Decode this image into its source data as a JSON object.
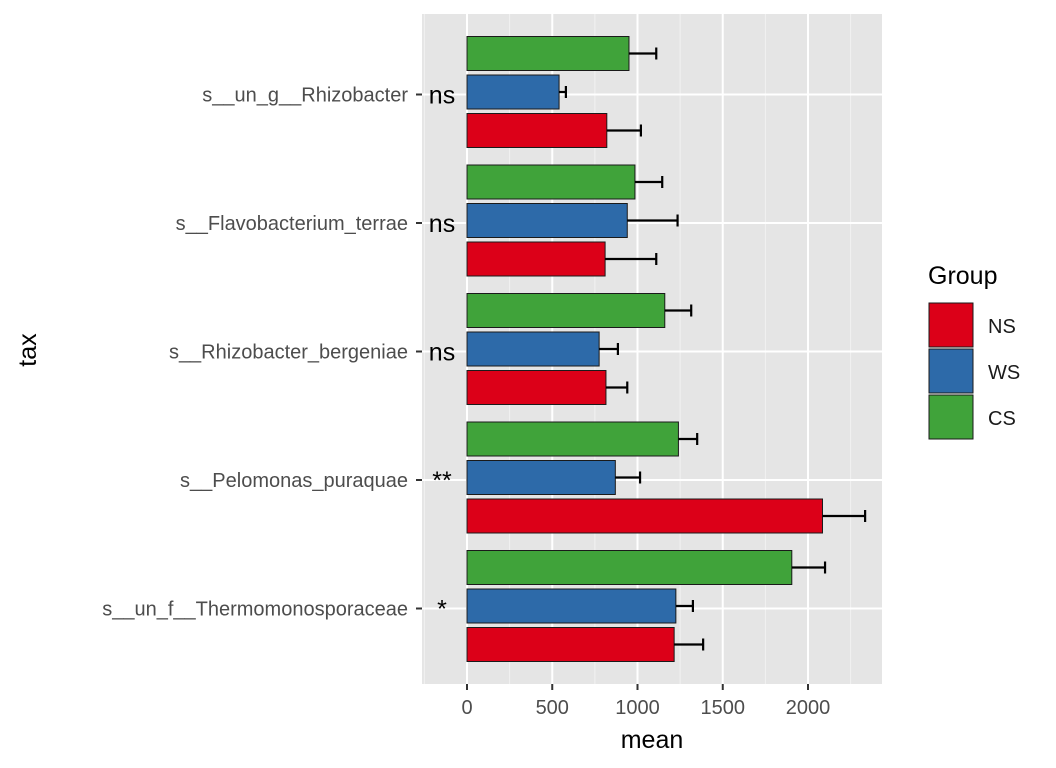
{
  "chart_data": {
    "type": "bar",
    "orientation": "horizontal",
    "xlabel": "mean",
    "ylabel": "tax",
    "xlim": [
      -250,
      2450
    ],
    "xticks": [
      0,
      500,
      1000,
      1500,
      2000
    ],
    "grid": true,
    "legend_position": "right",
    "legend_title": "Group",
    "categories": [
      "s__un_g__Rhizobacter",
      "s__Flavobacterium_terrae",
      "s__Rhizobacter_bergeniae",
      "s__Pelomonas_puraquae",
      "s__un_f__Thermomonosporaceae"
    ],
    "significance": [
      "ns",
      "ns",
      "ns",
      "**",
      "*"
    ],
    "series": [
      {
        "name": "NS",
        "color": "#dc0018",
        "values": [
          820,
          810,
          815,
          2085,
          1215
        ],
        "errors": [
          200,
          300,
          125,
          250,
          170
        ]
      },
      {
        "name": "WS",
        "color": "#2d6aa9",
        "values": [
          540,
          940,
          775,
          870,
          1225
        ],
        "errors": [
          40,
          295,
          110,
          145,
          100
        ]
      },
      {
        "name": "CS",
        "color": "#40a33a",
        "values": [
          950,
          985,
          1160,
          1240,
          1905
        ],
        "errors": [
          160,
          160,
          155,
          110,
          195
        ]
      }
    ]
  }
}
